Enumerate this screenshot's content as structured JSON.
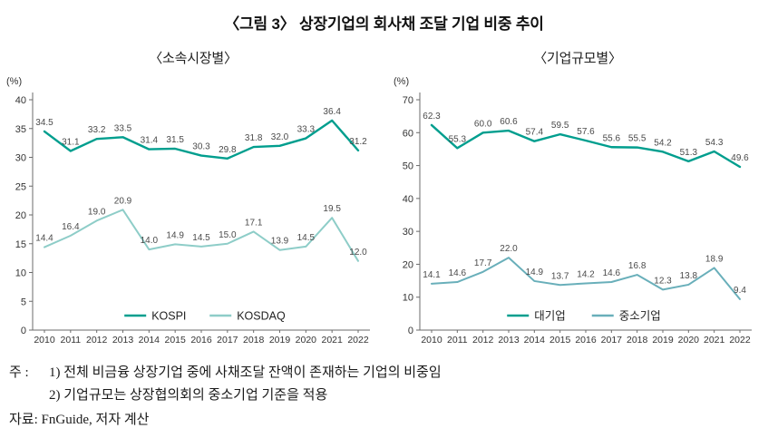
{
  "page": {
    "title": "〈그림 3〉 상장기업의 회사채 조달 기업 비중 추이",
    "notes": {
      "label": "주   :",
      "line1": "1) 전체 비금융 상장기업 중에 사채조달 잔액이 존재하는 기업의 비중임",
      "line2": "2) 기업규모는 상장협의회의 중소기업 기준을 적용",
      "source": "자료: FnGuide, 저자 계산"
    }
  },
  "chart_data": [
    {
      "type": "line",
      "title": "〈소속시장별〉",
      "unit": "(%)",
      "ylabel": "(%)",
      "ylim": [
        0,
        40
      ],
      "ytick_step": 5,
      "grid": false,
      "legend_position": "bottom-center-inside",
      "categories": [
        2010,
        2011,
        2012,
        2013,
        2014,
        2015,
        2016,
        2017,
        2018,
        2019,
        2020,
        2021,
        2022
      ],
      "series": [
        {
          "name": "KOSPI",
          "color": "#009e8e",
          "values": [
            34.5,
            31.1,
            33.2,
            33.5,
            31.4,
            31.5,
            30.3,
            29.8,
            31.8,
            32.0,
            33.3,
            36.4,
            31.2
          ]
        },
        {
          "name": "KOSDAQ",
          "color": "#8ecdc8",
          "values": [
            14.4,
            16.4,
            19.0,
            20.9,
            14.0,
            14.9,
            14.5,
            15.0,
            17.1,
            13.9,
            14.5,
            19.5,
            12.0
          ]
        }
      ]
    },
    {
      "type": "line",
      "title": "〈기업규모별〉",
      "unit": "(%)",
      "ylabel": "(%)",
      "ylim": [
        0,
        70
      ],
      "ytick_step": 10,
      "grid": false,
      "legend_position": "bottom-center-inside",
      "categories": [
        2010,
        2011,
        2012,
        2013,
        2014,
        2015,
        2016,
        2017,
        2018,
        2019,
        2020,
        2021,
        2022
      ],
      "series": [
        {
          "name": "대기업",
          "color": "#009e8e",
          "values": [
            62.3,
            55.3,
            60.0,
            60.6,
            57.4,
            59.5,
            57.6,
            55.6,
            55.5,
            54.2,
            51.3,
            54.3,
            49.6
          ]
        },
        {
          "name": "중소기업",
          "color": "#69afba",
          "values": [
            14.1,
            14.6,
            17.7,
            22.0,
            14.9,
            13.7,
            14.2,
            14.6,
            16.8,
            12.3,
            13.8,
            18.9,
            9.4
          ]
        }
      ]
    }
  ]
}
